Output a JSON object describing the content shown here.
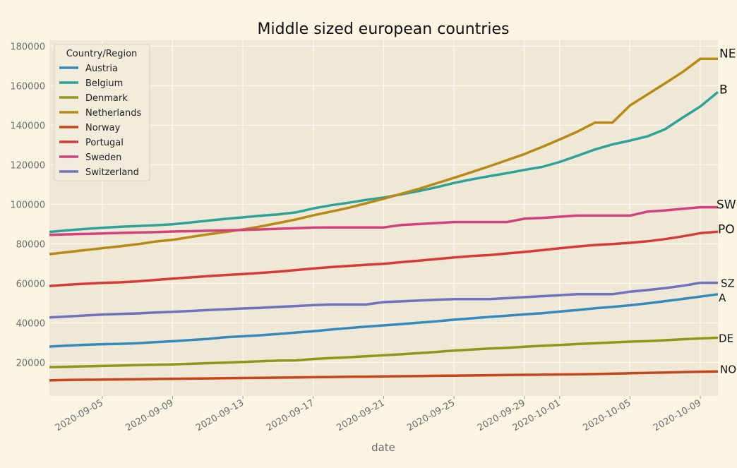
{
  "chart_data": {
    "type": "line",
    "title": "Middle sized european countries",
    "xlabel": "date",
    "ylabel": "",
    "ylim": [
      3000,
      183000
    ],
    "yticks": [
      20000,
      40000,
      60000,
      80000,
      100000,
      120000,
      140000,
      160000,
      180000
    ],
    "xticks": [
      "2020-09-05",
      "2020-09-09",
      "2020-09-13",
      "2020-09-17",
      "2020-09-21",
      "2020-09-25",
      "2020-09-29",
      "2020-10-01",
      "2020-10-05",
      "2020-10-09"
    ],
    "x": [
      "2020-09-02",
      "2020-09-03",
      "2020-09-04",
      "2020-09-05",
      "2020-09-06",
      "2020-09-07",
      "2020-09-08",
      "2020-09-09",
      "2020-09-10",
      "2020-09-11",
      "2020-09-12",
      "2020-09-13",
      "2020-09-14",
      "2020-09-15",
      "2020-09-16",
      "2020-09-17",
      "2020-09-18",
      "2020-09-19",
      "2020-09-20",
      "2020-09-21",
      "2020-09-22",
      "2020-09-23",
      "2020-09-24",
      "2020-09-25",
      "2020-09-26",
      "2020-09-27",
      "2020-09-28",
      "2020-09-29",
      "2020-09-30",
      "2020-10-01",
      "2020-10-02",
      "2020-10-03",
      "2020-10-04",
      "2020-10-05",
      "2020-10-06",
      "2020-10-07",
      "2020-10-08",
      "2020-10-09",
      "2020-10-10"
    ],
    "grid": true,
    "legend": {
      "title": "Country/Region",
      "placement": "upper-left"
    },
    "series": [
      {
        "name": "Austria",
        "color": "#348abd",
        "end_label": "A",
        "values": [
          28000,
          28500,
          28900,
          29200,
          29400,
          29700,
          30200,
          30700,
          31300,
          31900,
          32700,
          33200,
          33700,
          34400,
          35100,
          35800,
          36600,
          37400,
          38100,
          38700,
          39400,
          40100,
          40800,
          41600,
          42300,
          43000,
          43600,
          44300,
          44900,
          45700,
          46500,
          47400,
          48100,
          48900,
          49900,
          51000,
          52100,
          53300,
          54500
        ]
      },
      {
        "name": "Belgium",
        "color": "#2ca29a",
        "end_label": "B",
        "values": [
          86000,
          86800,
          87500,
          88100,
          88600,
          89000,
          89400,
          89900,
          90800,
          91700,
          92600,
          93400,
          94200,
          94900,
          95900,
          97900,
          99500,
          100800,
          102200,
          103400,
          105000,
          106700,
          108600,
          110800,
          112600,
          114200,
          115700,
          117400,
          118900,
          121400,
          124500,
          127700,
          130300,
          132200,
          134400,
          138000,
          143900,
          149500,
          156800
        ]
      },
      {
        "name": "Denmark",
        "color": "#8b9a16",
        "end_label": "DE",
        "values": [
          17600,
          17800,
          18000,
          18200,
          18400,
          18600,
          18800,
          19000,
          19300,
          19600,
          19900,
          20200,
          20600,
          20900,
          21000,
          21700,
          22200,
          22600,
          23100,
          23600,
          24100,
          24700,
          25300,
          26000,
          26500,
          27000,
          27400,
          27900,
          28400,
          28800,
          29300,
          29700,
          30100,
          30500,
          30800,
          31200,
          31700,
          32100,
          32500
        ]
      },
      {
        "name": "Netherlands",
        "color": "#b88a13",
        "end_label": "NE",
        "values": [
          74800,
          75800,
          76800,
          77800,
          78700,
          79800,
          81100,
          82000,
          83400,
          84800,
          86000,
          87300,
          88800,
          90500,
          92300,
          94400,
          96300,
          98200,
          100500,
          102800,
          105300,
          107800,
          110600,
          113400,
          116300,
          119200,
          122300,
          125400,
          129000,
          132800,
          136700,
          141300,
          141300,
          150000,
          155600,
          161200,
          167000,
          173600,
          173600
        ]
      },
      {
        "name": "Norway",
        "color": "#c6461b",
        "end_label": "NO",
        "values": [
          10900,
          11100,
          11200,
          11300,
          11400,
          11500,
          11600,
          11700,
          11800,
          11900,
          12000,
          12100,
          12200,
          12300,
          12400,
          12500,
          12600,
          12700,
          12800,
          12900,
          13000,
          13100,
          13200,
          13300,
          13400,
          13500,
          13600,
          13700,
          13800,
          13900,
          14000,
          14100,
          14300,
          14500,
          14700,
          14900,
          15100,
          15300,
          15400
        ]
      },
      {
        "name": "Portugal",
        "color": "#d83a36",
        "end_label": "PO",
        "values": [
          58600,
          59300,
          59800,
          60200,
          60500,
          61000,
          61700,
          62400,
          63000,
          63600,
          64200,
          64700,
          65300,
          65900,
          66700,
          67500,
          68200,
          68800,
          69400,
          69900,
          70700,
          71500,
          72300,
          73100,
          73800,
          74300,
          75100,
          75900,
          76800,
          77700,
          78600,
          79400,
          79900,
          80500,
          81300,
          82400,
          83800,
          85400,
          86100
        ]
      },
      {
        "name": "Sweden",
        "color": "#d2417c",
        "end_label": "SW",
        "values": [
          84500,
          84800,
          85000,
          85200,
          85500,
          85700,
          85900,
          86200,
          86400,
          86600,
          86800,
          87000,
          87300,
          87600,
          87900,
          88200,
          88300,
          88300,
          88300,
          88300,
          89500,
          90000,
          90500,
          91000,
          91000,
          91000,
          91000,
          92700,
          93100,
          93700,
          94300,
          94300,
          94300,
          94300,
          96300,
          96900,
          97700,
          98500,
          98500
        ]
      },
      {
        "name": "Switzerland",
        "color": "#7271c0",
        "end_label": "SZ",
        "values": [
          42700,
          43200,
          43700,
          44200,
          44500,
          44800,
          45200,
          45600,
          46000,
          46500,
          46900,
          47300,
          47600,
          48100,
          48500,
          49000,
          49300,
          49300,
          49300,
          50500,
          50900,
          51300,
          51700,
          52000,
          52000,
          52000,
          52500,
          53000,
          53500,
          54000,
          54500,
          54500,
          54500,
          55800,
          56600,
          57600,
          58800,
          60300,
          60300
        ]
      }
    ]
  }
}
